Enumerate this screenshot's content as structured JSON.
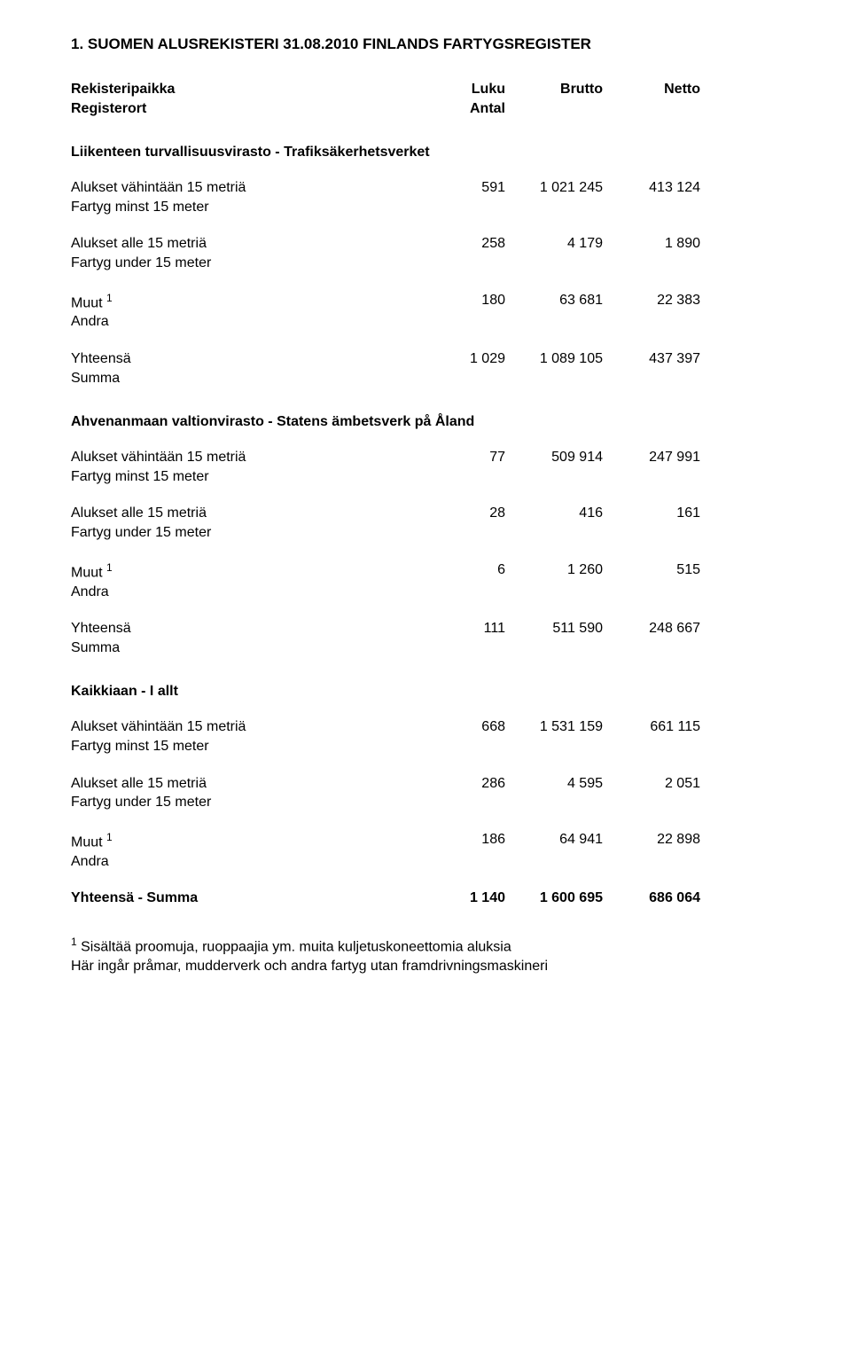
{
  "title": "1. SUOMEN ALUSREKISTERI 31.08.2010 FINLANDS FARTYGSREGISTER",
  "header": {
    "col1_fi": "Rekisteripaikka",
    "col1_sv": "Registerort",
    "col2_fi": "Luku",
    "col2_sv": "Antal",
    "col3": "Brutto",
    "col4": "Netto"
  },
  "sections": [
    {
      "title": "Liikenteen turvallisuusvirasto - Trafiksäkerhetsverket",
      "rows": [
        {
          "label_fi": "Alukset vähintään 15 metriä",
          "label_sv": "Fartyg minst 15 meter",
          "c1": "591",
          "c2": "1 021 245",
          "c3": "413 124"
        },
        {
          "label_fi": "Alukset alle 15 metriä",
          "label_sv": "Fartyg under 15 meter",
          "c1": "258",
          "c2": "4 179",
          "c3": "1 890"
        },
        {
          "label_fi": "Muut ",
          "sup": "1",
          "label_sv": "Andra",
          "c1": "180",
          "c2": "63 681",
          "c3": "22 383"
        },
        {
          "label_fi": "Yhteensä",
          "label_sv": "Summa",
          "c1": "1 029",
          "c2": "1 089 105",
          "c3": "437 397"
        }
      ]
    },
    {
      "title": "Ahvenanmaan valtionvirasto - Statens ämbetsverk på Åland",
      "rows": [
        {
          "label_fi": "Alukset vähintään 15 metriä",
          "label_sv": "Fartyg minst 15 meter",
          "c1": "77",
          "c2": "509 914",
          "c3": "247 991"
        },
        {
          "label_fi": "Alukset alle 15 metriä",
          "label_sv": "Fartyg under 15 meter",
          "c1": "28",
          "c2": "416",
          "c3": "161"
        },
        {
          "label_fi": "Muut ",
          "sup": "1",
          "label_sv": "Andra",
          "c1": "6",
          "c2": "1 260",
          "c3": "515"
        },
        {
          "label_fi": "Yhteensä",
          "label_sv": "Summa",
          "c1": "111",
          "c2": "511 590",
          "c3": "248 667"
        }
      ]
    },
    {
      "title": "Kaikkiaan - I allt",
      "rows": [
        {
          "label_fi": "Alukset vähintään 15 metriä",
          "label_sv": "Fartyg minst 15 meter",
          "c1": "668",
          "c2": "1 531 159",
          "c3": "661 115"
        },
        {
          "label_fi": "Alukset alle 15 metriä",
          "label_sv": "Fartyg under 15 meter",
          "c1": "286",
          "c2": "4 595",
          "c3": "2 051"
        },
        {
          "label_fi": "Muut ",
          "sup": "1",
          "label_sv": "Andra",
          "c1": "186",
          "c2": "64 941",
          "c3": "22 898"
        },
        {
          "label_fi": "Yhteensä - Summa",
          "label_sv": "",
          "bold": true,
          "c1": "1 140",
          "c2": "1 600 695",
          "c3": "686 064"
        }
      ]
    }
  ],
  "footnote": {
    "marker": "1",
    "line1": " Sisältää proomuja, ruoppaajia ym. muita kuljetuskoneettomia aluksia",
    "line2": "  Här ingår pråmar, mudderverk och andra fartyg utan framdrivningsmaskineri"
  }
}
